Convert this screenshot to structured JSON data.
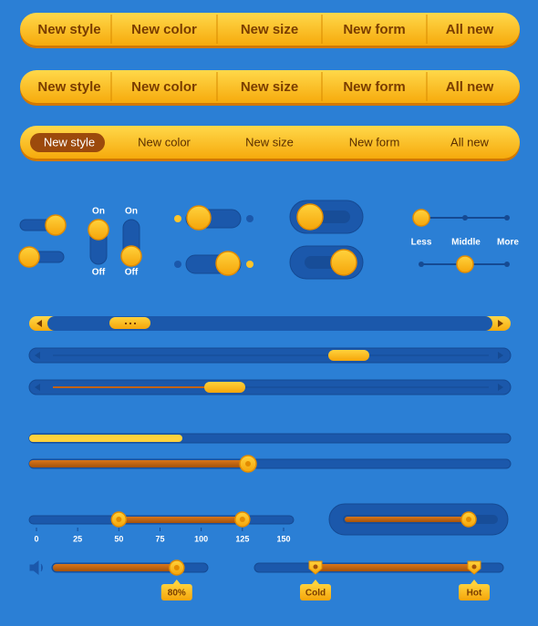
{
  "menu": [
    "New style",
    "New color",
    "New size",
    "New form",
    "All new"
  ],
  "switches": {
    "on": "On",
    "off": "Off"
  },
  "steps": [
    "Less",
    "Middle",
    "More"
  ],
  "range_slider": {
    "ticks": [
      0,
      25,
      50,
      75,
      100,
      125,
      150
    ],
    "low": 50,
    "high": 125
  },
  "volume": {
    "value": 80,
    "label": "80%"
  },
  "temperature": {
    "low": "Cold",
    "high": "Hot"
  }
}
